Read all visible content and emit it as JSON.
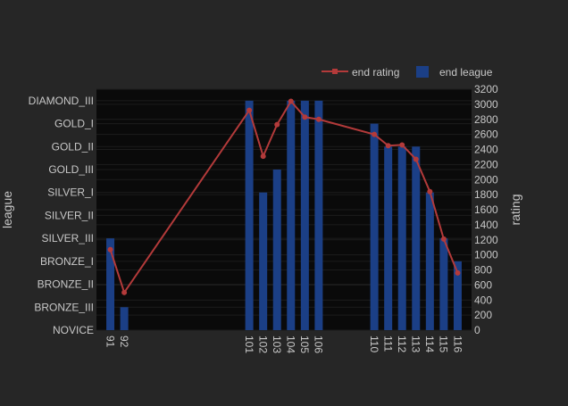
{
  "colors": {
    "page_bg": "#262626",
    "plot_bg": "#0a0a0a",
    "grid": "#1c1c1c",
    "tick_text": "#c8c8c8",
    "bar_fill": "#1b3f86",
    "line_color": "#b33a3a"
  },
  "chart_data": {
    "type": "bar",
    "title": "",
    "xlabel": "",
    "ylabel_left": "league",
    "ylabel_right": "rating",
    "grid": true,
    "legend_position": "top-right",
    "legend": [
      {
        "label": "end rating",
        "kind": "line"
      },
      {
        "label": "end league",
        "kind": "bar"
      }
    ],
    "x_ticks": [
      91,
      92,
      101,
      102,
      103,
      104,
      105,
      106,
      110,
      111,
      112,
      113,
      114,
      115,
      116
    ],
    "league_levels": [
      "NOVICE",
      "BRONZE_III",
      "BRONZE_II",
      "BRONZE_I",
      "SILVER_III",
      "SILVER_II",
      "SILVER_I",
      "GOLD_III",
      "GOLD_II",
      "GOLD_I",
      "DIAMOND_III"
    ],
    "rating_range": [
      0,
      3200
    ],
    "rating_ticks": [
      0,
      200,
      400,
      600,
      800,
      1000,
      1200,
      1400,
      1600,
      1800,
      2000,
      2200,
      2400,
      2600,
      2800,
      3000,
      3200
    ],
    "series": [
      {
        "name": "end league",
        "type": "bar",
        "axis": "left",
        "x": [
          91,
          92,
          101,
          102,
          103,
          104,
          105,
          106,
          110,
          111,
          112,
          113,
          114,
          115,
          116
        ],
        "values": [
          "SILVER_III",
          "BRONZE_III",
          "DIAMOND_III",
          "SILVER_I",
          "GOLD_III",
          "DIAMOND_III",
          "DIAMOND_III",
          "DIAMOND_III",
          "GOLD_I",
          "GOLD_II",
          "GOLD_II",
          "GOLD_II",
          "SILVER_I",
          "SILVER_III",
          "BRONZE_I"
        ]
      },
      {
        "name": "end rating",
        "type": "line",
        "axis": "right",
        "x": [
          91,
          92,
          101,
          102,
          103,
          104,
          105,
          106,
          110,
          111,
          112,
          113,
          114,
          115,
          116
        ],
        "values": [
          1070,
          500,
          2920,
          2310,
          2730,
          3040,
          2830,
          2800,
          2600,
          2450,
          2460,
          2270,
          1840,
          1210,
          760
        ]
      }
    ]
  }
}
